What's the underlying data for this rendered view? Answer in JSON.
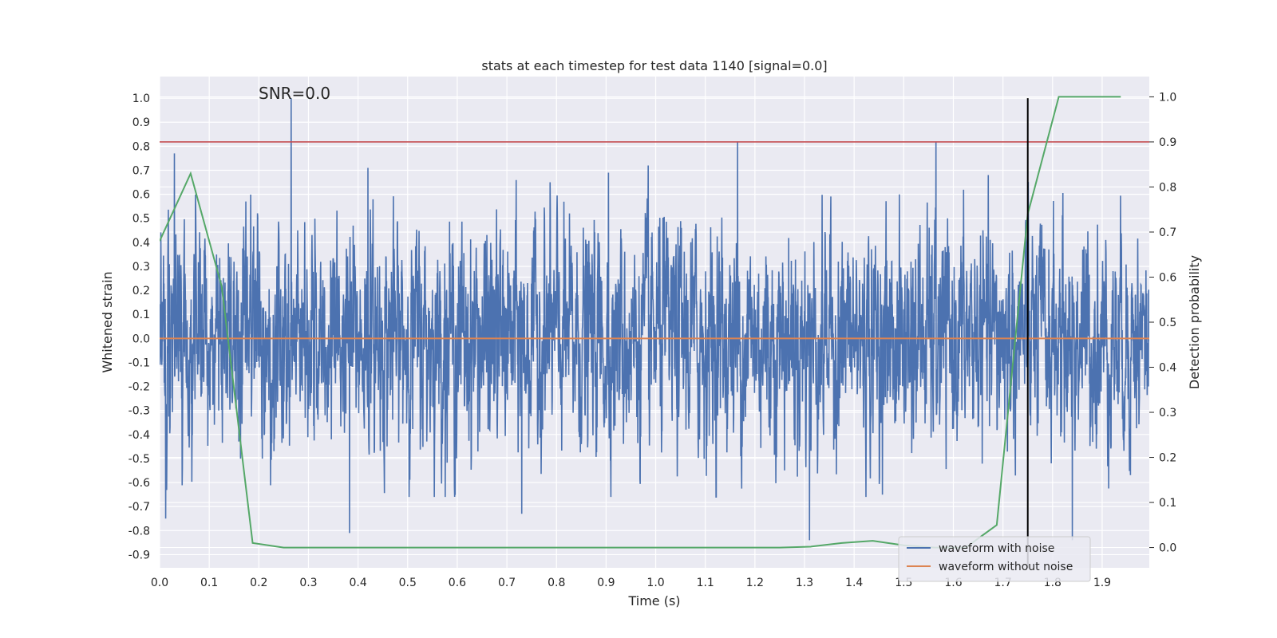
{
  "chart_data": {
    "type": "line",
    "title": "stats at each timestep for test data 1140 [signal=0.0]",
    "xlabel": "Time (s)",
    "ylabel": "Whitened strain",
    "y2label": "Detection probability",
    "xlim": [
      0.0,
      1.995
    ],
    "ylim": [
      -0.955,
      1.09
    ],
    "y2lim": [
      -0.045,
      1.045
    ],
    "x_ticks": [
      "0.0",
      "0.1",
      "0.2",
      "0.3",
      "0.4",
      "0.5",
      "0.6",
      "0.7",
      "0.8",
      "0.9",
      "1.0",
      "1.1",
      "1.2",
      "1.3",
      "1.4",
      "1.5",
      "1.6",
      "1.7",
      "1.8",
      "1.9"
    ],
    "y_ticks": [
      "1.0",
      "0.9",
      "0.8",
      "0.7",
      "0.6",
      "0.5",
      "0.4",
      "0.3",
      "0.2",
      "0.1",
      "0.0",
      "-0.1",
      "-0.2",
      "-0.3",
      "-0.4",
      "-0.5",
      "-0.6",
      "-0.7",
      "-0.8",
      "-0.9"
    ],
    "y2_ticks": [
      "1.0",
      "0.9",
      "0.8",
      "0.7",
      "0.6",
      "0.5",
      "0.4",
      "0.3",
      "0.2",
      "0.1",
      "0.0"
    ],
    "grid": true,
    "legend_position": "lower-right",
    "annotation": "SNR=0.0",
    "threshold_y2": 0.9,
    "vline_x": 1.75,
    "vline_y_range": [
      -0.955,
      1.0
    ],
    "colors": {
      "plot_bg": "#eaeaf2",
      "grid": "#ffffff",
      "noise": "#4c72b0",
      "clean": "#dd8452",
      "probability": "#55a868",
      "threshold": "#c44e52",
      "vline": "#000000"
    },
    "series": [
      {
        "name": "waveform with noise",
        "axis": "left",
        "sample_rate": 2048,
        "x_start": 0.0,
        "x_end": 1.999,
        "amplitude_sd": 0.22,
        "peaks": [
          {
            "x": 0.012,
            "y": -0.75
          },
          {
            "x": 0.03,
            "y": 0.77
          },
          {
            "x": 0.265,
            "y": 1.0
          },
          {
            "x": 0.383,
            "y": -0.81
          },
          {
            "x": 0.42,
            "y": 0.71
          },
          {
            "x": 0.73,
            "y": -0.73
          },
          {
            "x": 0.905,
            "y": 0.69
          },
          {
            "x": 0.985,
            "y": 0.72
          },
          {
            "x": 1.165,
            "y": 0.82
          },
          {
            "x": 1.31,
            "y": -0.84
          },
          {
            "x": 1.565,
            "y": 0.82
          },
          {
            "x": 1.84,
            "y": -0.84
          }
        ]
      },
      {
        "name": "waveform without noise",
        "axis": "left",
        "x": [
          0.0,
          1.995
        ],
        "y": [
          0.0,
          0.0
        ]
      },
      {
        "name": "",
        "axis": "right",
        "x": [
          0.0,
          0.0625,
          0.125,
          0.1875,
          0.25,
          0.3125,
          0.375,
          0.4375,
          0.5,
          0.5625,
          0.625,
          0.6875,
          0.75,
          0.8125,
          0.875,
          0.9375,
          1.0,
          1.0625,
          1.125,
          1.1875,
          1.25,
          1.3125,
          1.375,
          1.4375,
          1.5,
          1.5625,
          1.625,
          1.6875,
          1.75,
          1.8125,
          1.875,
          1.9375
        ],
        "y": [
          0.68,
          0.83,
          0.58,
          0.01,
          0.0,
          0.0,
          0.0,
          0.0,
          0.0,
          0.0,
          0.0,
          0.0,
          0.0,
          0.0,
          0.0,
          0.0,
          0.0,
          0.0,
          0.0,
          0.0,
          0.0,
          0.002,
          0.01,
          0.015,
          0.005,
          0.0,
          0.0,
          0.05,
          0.74,
          1.0,
          1.0,
          1.0
        ]
      }
    ]
  }
}
